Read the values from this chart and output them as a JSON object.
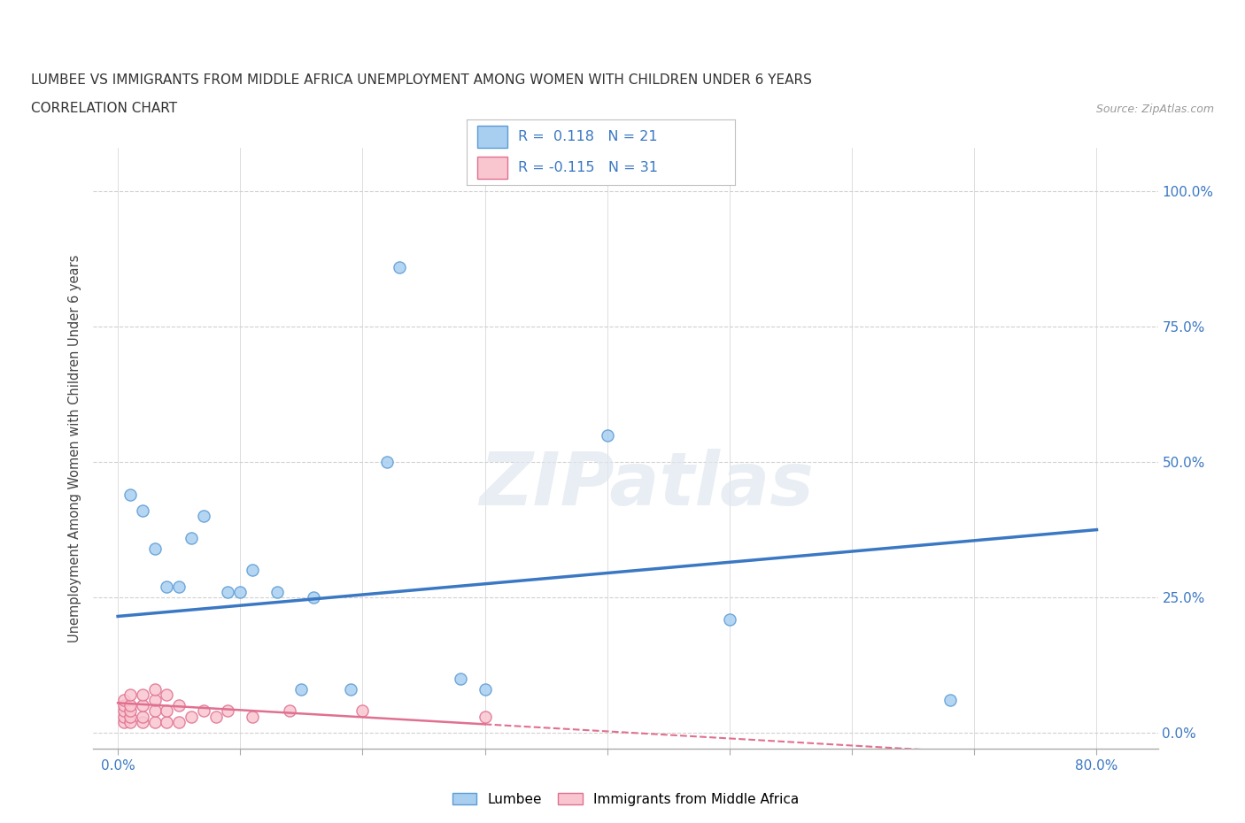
{
  "title_line1": "LUMBEE VS IMMIGRANTS FROM MIDDLE AFRICA UNEMPLOYMENT AMONG WOMEN WITH CHILDREN UNDER 6 YEARS",
  "title_line2": "CORRELATION CHART",
  "source_text": "Source: ZipAtlas.com",
  "ylabel": "Unemployment Among Women with Children Under 6 years",
  "x_ticks": [
    0.0,
    0.1,
    0.2,
    0.3,
    0.4,
    0.5,
    0.6,
    0.7,
    0.8
  ],
  "y_ticks": [
    0.0,
    0.25,
    0.5,
    0.75,
    1.0
  ],
  "y_tick_labels_right": [
    "0.0%",
    "25.0%",
    "50.0%",
    "75.0%",
    "100.0%"
  ],
  "xlim": [
    -0.02,
    0.85
  ],
  "ylim": [
    -0.03,
    1.08
  ],
  "lumbee_x": [
    0.01,
    0.02,
    0.03,
    0.04,
    0.05,
    0.06,
    0.07,
    0.09,
    0.1,
    0.11,
    0.13,
    0.15,
    0.16,
    0.19,
    0.22,
    0.23,
    0.28,
    0.3,
    0.5,
    0.68,
    0.4
  ],
  "lumbee_y": [
    0.44,
    0.41,
    0.34,
    0.27,
    0.27,
    0.36,
    0.4,
    0.26,
    0.26,
    0.3,
    0.26,
    0.08,
    0.25,
    0.08,
    0.5,
    0.86,
    0.1,
    0.08,
    0.21,
    0.06,
    0.55
  ],
  "immigrants_x": [
    0.005,
    0.005,
    0.005,
    0.005,
    0.005,
    0.01,
    0.01,
    0.01,
    0.01,
    0.01,
    0.02,
    0.02,
    0.02,
    0.02,
    0.03,
    0.03,
    0.03,
    0.03,
    0.04,
    0.04,
    0.04,
    0.05,
    0.05,
    0.06,
    0.07,
    0.08,
    0.09,
    0.11,
    0.14,
    0.2,
    0.3
  ],
  "immigrants_y": [
    0.02,
    0.03,
    0.04,
    0.05,
    0.06,
    0.02,
    0.03,
    0.04,
    0.05,
    0.07,
    0.02,
    0.03,
    0.05,
    0.07,
    0.02,
    0.04,
    0.06,
    0.08,
    0.02,
    0.04,
    0.07,
    0.02,
    0.05,
    0.03,
    0.04,
    0.03,
    0.04,
    0.03,
    0.04,
    0.04,
    0.03
  ],
  "lumbee_color": "#a8cff0",
  "lumbee_edge_color": "#5b9bd5",
  "immigrants_color": "#f9c6d0",
  "immigrants_edge_color": "#e07090",
  "lumbee_R": 0.118,
  "lumbee_N": 21,
  "immigrants_R": -0.115,
  "immigrants_N": 31,
  "lumbee_trendline_color": "#3b78c3",
  "immigrants_trendline_color": "#e07090",
  "watermark": "ZIPatlas",
  "background_color": "#ffffff",
  "grid_color": "#d0d0d0",
  "legend_bottom_labels": [
    "Lumbee",
    "Immigrants from Middle Africa"
  ],
  "lumbee_trend_x0": 0.0,
  "lumbee_trend_x1": 0.8,
  "lumbee_trend_y0": 0.215,
  "lumbee_trend_y1": 0.375,
  "immigrants_trend_x0": 0.0,
  "immigrants_trend_x1": 0.8,
  "immigrants_trend_y0": 0.055,
  "immigrants_trend_y1": -0.05
}
